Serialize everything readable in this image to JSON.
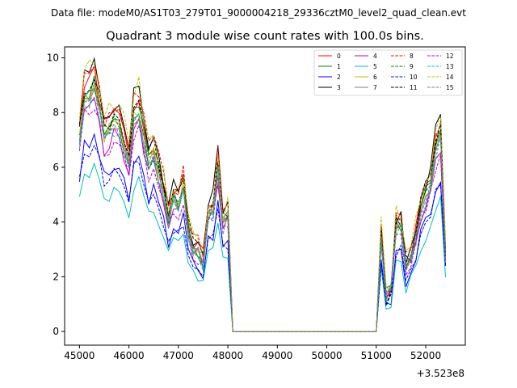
{
  "figure": {
    "suptitle": "Data file: modeM0/AS1T03_279T01_9000004218_29336cztM0_level2_quad_clean.evt"
  },
  "chart_data": {
    "type": "line",
    "title": "Quadrant 3 module wise count rates with 100.0s bins.",
    "xlabel": "",
    "ylabel": "",
    "x_offset_label": "+3.523e8",
    "xlim": [
      44700,
      52800
    ],
    "ylim": [
      -0.5,
      10.4
    ],
    "xticks": [
      45000,
      46000,
      47000,
      48000,
      49000,
      50000,
      51000,
      52000
    ],
    "xtick_labels": [
      "45000",
      "46000",
      "47000",
      "48000",
      "49000",
      "50000",
      "51000",
      "52000"
    ],
    "yticks": [
      0,
      2,
      4,
      6,
      8,
      10
    ],
    "ytick_labels": [
      "0",
      "2",
      "4",
      "6",
      "8",
      "10"
    ],
    "grid": false,
    "legend_position": "top-right",
    "legend_columns": 4,
    "series": [
      {
        "name": "0",
        "color": "#ff0000",
        "style": "solid",
        "scale": 0.96,
        "seed": 1
      },
      {
        "name": "1",
        "color": "#008000",
        "style": "solid",
        "scale": 0.93,
        "seed": 2
      },
      {
        "name": "2",
        "color": "#0000ff",
        "style": "solid",
        "scale": 0.72,
        "seed": 3
      },
      {
        "name": "3",
        "color": "#000000",
        "style": "solid",
        "scale": 1.0,
        "seed": 4
      },
      {
        "name": "4",
        "color": "#bf00bf",
        "style": "solid",
        "scale": 0.86,
        "seed": 5
      },
      {
        "name": "5",
        "color": "#00bfbf",
        "style": "solid",
        "scale": 0.62,
        "seed": 6
      },
      {
        "name": "6",
        "color": "#bfbf00",
        "style": "solid",
        "scale": 0.92,
        "seed": 7
      },
      {
        "name": "7",
        "color": "#808080",
        "style": "solid",
        "scale": 0.9,
        "seed": 8
      },
      {
        "name": "8",
        "color": "#ff0000",
        "style": "dashed",
        "scale": 0.99,
        "seed": 9
      },
      {
        "name": "9",
        "color": "#008000",
        "style": "dashed",
        "scale": 0.91,
        "seed": 10
      },
      {
        "name": "10",
        "color": "#0000ff",
        "style": "dashed",
        "scale": 0.7,
        "seed": 11
      },
      {
        "name": "11",
        "color": "#000000",
        "style": "dashed",
        "scale": 0.95,
        "seed": 12
      },
      {
        "name": "12",
        "color": "#bf00bf",
        "style": "dashed",
        "scale": 0.84,
        "seed": 13
      },
      {
        "name": "13",
        "color": "#00bfbf",
        "style": "dashed",
        "scale": 0.88,
        "seed": 14
      },
      {
        "name": "14",
        "color": "#bfbf00",
        "style": "dashed",
        "scale": 1.02,
        "seed": 15
      },
      {
        "name": "15",
        "color": "#808080",
        "style": "dashed",
        "scale": 0.89,
        "seed": 16
      }
    ],
    "base_profile": {
      "x": [
        45000,
        45100,
        45200,
        45300,
        45400,
        45500,
        45600,
        45700,
        45800,
        45900,
        46000,
        46100,
        46200,
        46300,
        46400,
        46500,
        46600,
        46700,
        46800,
        46900,
        47000,
        47100,
        47200,
        47300,
        47400,
        47500,
        47600,
        47700,
        47800,
        47900,
        48000,
        48100,
        48200,
        48300,
        48400,
        48500,
        48600,
        48700,
        48800,
        48900,
        49000,
        49100,
        49200,
        49300,
        49400,
        49500,
        49600,
        49700,
        49800,
        49900,
        50000,
        50100,
        50200,
        50300,
        50400,
        50500,
        50600,
        50700,
        50800,
        50900,
        51000,
        51100,
        51200,
        51300,
        51400,
        51500,
        51600,
        51700,
        51800,
        51900,
        52000,
        52100,
        52200,
        52300,
        52400
      ],
      "y": [
        7.8,
        9.4,
        9.4,
        9.9,
        9.0,
        7.8,
        8.0,
        8.3,
        8.3,
        7.5,
        6.5,
        8.6,
        8.8,
        7.8,
        6.8,
        7.2,
        6.4,
        5.6,
        4.5,
        5.4,
        5.1,
        5.8,
        4.1,
        3.4,
        3.2,
        2.8,
        4.7,
        4.9,
        6.5,
        4.3,
        4.6,
        0.0,
        0.0,
        0.0,
        0.0,
        0.0,
        0.0,
        0.0,
        0.0,
        0.0,
        0.0,
        0.0,
        0.0,
        0.0,
        0.0,
        0.0,
        0.0,
        0.0,
        0.0,
        0.0,
        0.0,
        0.0,
        0.0,
        0.0,
        0.0,
        0.0,
        0.0,
        0.0,
        0.0,
        0.0,
        0.0,
        3.8,
        1.4,
        1.7,
        4.2,
        4.3,
        2.6,
        3.0,
        3.8,
        4.9,
        5.5,
        5.9,
        7.3,
        7.8,
        3.1
      ]
    },
    "noise_amplitude": 0.35
  }
}
